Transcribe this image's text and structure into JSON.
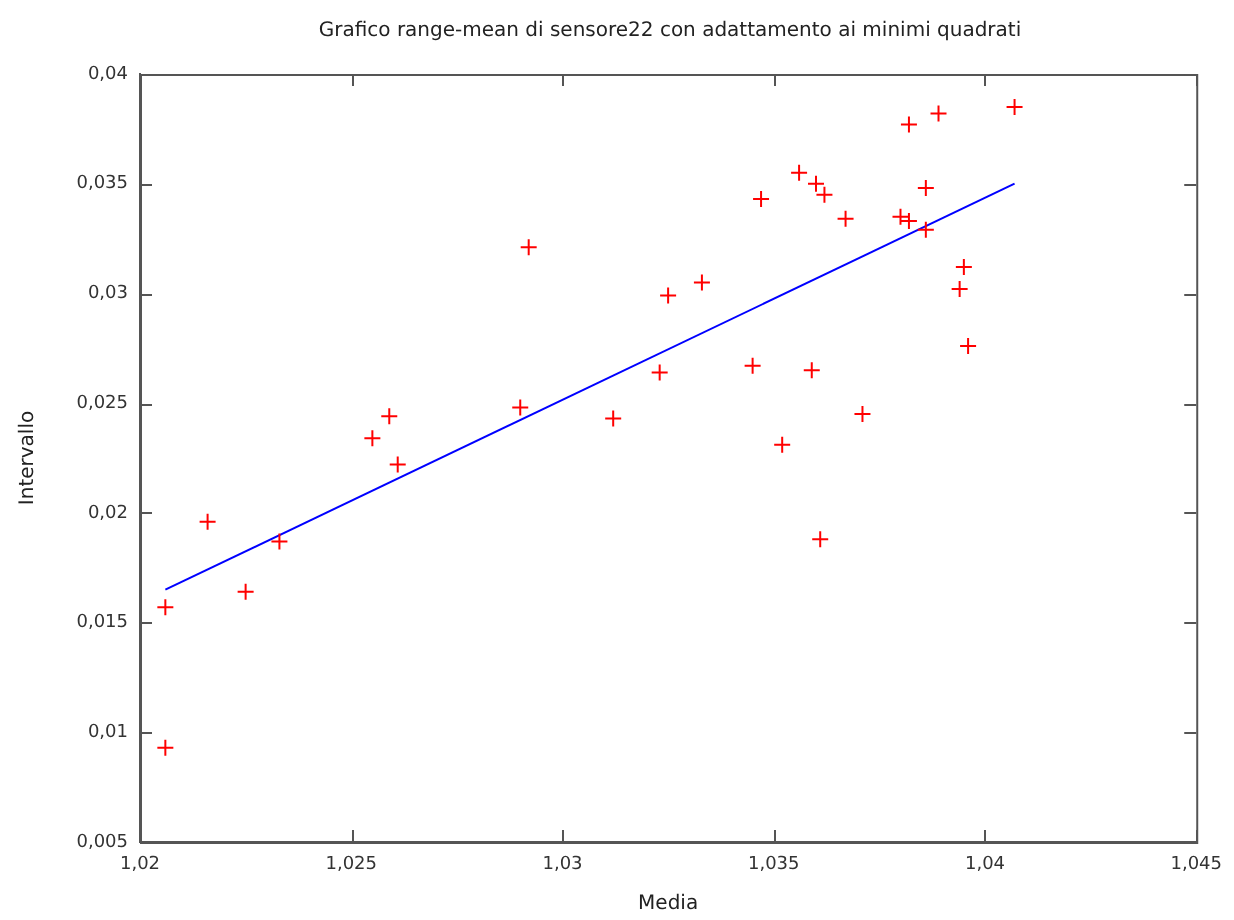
{
  "chart_data": {
    "type": "scatter",
    "title": "Grafico range-mean di sensore22 con adattamento ai minimi quadrati",
    "xlabel": "Media",
    "ylabel": "Intervallo",
    "xlim": [
      1.02,
      1.045
    ],
    "ylim": [
      0.005,
      0.04
    ],
    "xticks": [
      {
        "value": 1.02,
        "label": "1,02"
      },
      {
        "value": 1.025,
        "label": "1,025"
      },
      {
        "value": 1.03,
        "label": "1,03"
      },
      {
        "value": 1.035,
        "label": "1,035"
      },
      {
        "value": 1.04,
        "label": "1,04"
      },
      {
        "value": 1.045,
        "label": "1,045"
      }
    ],
    "yticks": [
      {
        "value": 0.005,
        "label": "0,005"
      },
      {
        "value": 0.01,
        "label": "0,01"
      },
      {
        "value": 0.015,
        "label": "0,015"
      },
      {
        "value": 0.02,
        "label": "0,02"
      },
      {
        "value": 0.025,
        "label": "0,025"
      },
      {
        "value": 0.03,
        "label": "0,03"
      },
      {
        "value": 0.035,
        "label": "0,035"
      },
      {
        "value": 0.04,
        "label": "0,04"
      }
    ],
    "grid": false,
    "legend": false,
    "marker": "cross",
    "series": [
      {
        "type": "scatter",
        "color": "#ff0000",
        "x": [
          1.0292,
          1.0325,
          1.0323,
          1.029,
          1.0312,
          1.0259,
          1.0255,
          1.0261,
          1.0216,
          1.0233,
          1.0225,
          1.0206,
          1.0206,
          1.0407,
          1.0389,
          1.0382,
          1.0356,
          1.036,
          1.0362,
          1.0347,
          1.0386,
          1.0367,
          1.038,
          1.0382,
          1.0386,
          1.0333,
          1.0395,
          1.0394,
          1.0396,
          1.0345,
          1.0359,
          1.0371,
          1.0352,
          1.0361
        ],
        "values": [
          0.0321,
          0.0299,
          0.0264,
          0.0248,
          0.0243,
          0.0244,
          0.0234,
          0.0222,
          0.0196,
          0.0187,
          0.0164,
          0.0157,
          0.0093,
          0.0385,
          0.0382,
          0.0377,
          0.0355,
          0.035,
          0.0345,
          0.0343,
          0.0348,
          0.0334,
          0.0335,
          0.0333,
          0.0329,
          0.0305,
          0.0312,
          0.0302,
          0.0276,
          0.0267,
          0.0265,
          0.0245,
          0.0231,
          0.0188
        ]
      },
      {
        "type": "line",
        "color": "#0000ff",
        "marker": "none",
        "line_style": "solid",
        "x": [
          1.0206,
          1.0407
        ],
        "values": [
          0.0165,
          0.035
        ]
      }
    ]
  }
}
